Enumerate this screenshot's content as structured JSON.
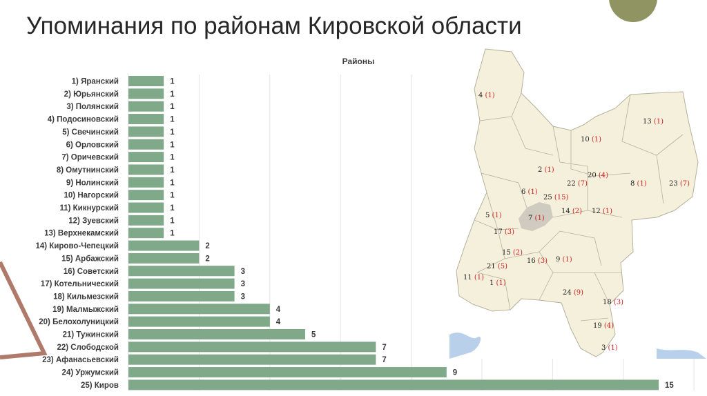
{
  "header": {
    "title": "Упоминания по районам Кировской области"
  },
  "chart_data": {
    "type": "bar",
    "orientation": "horizontal",
    "title": "Районы",
    "xlabel": "",
    "ylabel": "",
    "xlim": [
      0,
      16
    ],
    "grid": true,
    "color": "#7fa988",
    "categories": [
      "1) Яранский",
      "2) Юрьянский",
      "3) Полянский",
      "4) Подосиновский",
      "5) Свечинский",
      "6) Орловский",
      "7) Оричевский",
      "8) Омутнинский",
      "9) Нолинский",
      "10) Нагорский",
      "11) Кикнурский",
      "12) Зуевский",
      "13) Верхнекамский",
      "14) Кирово-Чепецкий",
      "15) Арбажский",
      "16) Советский",
      "17) Котельнический",
      "18) Кильмезский",
      "19) Малмыжский",
      "20) Белохолуницкий",
      "21) Тужинский",
      "22) Слободской",
      "23) Афанасьевский",
      "24) Уржумский",
      "25) Киров"
    ],
    "values": [
      1,
      1,
      1,
      1,
      1,
      1,
      1,
      1,
      1,
      1,
      1,
      1,
      1,
      2,
      2,
      3,
      3,
      3,
      4,
      4,
      5,
      7,
      7,
      9,
      15
    ]
  },
  "map": {
    "land_color": "#f4f0dc",
    "border_color": "#b5b09b",
    "city_color": "#cfcbc0",
    "labels": [
      {
        "num": "4",
        "count": "(1)"
      },
      {
        "num": "13",
        "count": "(1)"
      },
      {
        "num": "10",
        "count": "(1)"
      },
      {
        "num": "2",
        "count": "(1)"
      },
      {
        "num": "20",
        "count": "(4)"
      },
      {
        "num": "22",
        "count": "(7)"
      },
      {
        "num": "8",
        "count": "(1)"
      },
      {
        "num": "23",
        "count": "(7)"
      },
      {
        "num": "6",
        "count": "(1)"
      },
      {
        "num": "25",
        "count": "(15)"
      },
      {
        "num": "14",
        "count": "(2)"
      },
      {
        "num": "12",
        "count": "(1)"
      },
      {
        "num": "5",
        "count": "(1)"
      },
      {
        "num": "7",
        "count": "(1)"
      },
      {
        "num": "17",
        "count": "(3)"
      },
      {
        "num": "15",
        "count": "(2)"
      },
      {
        "num": "21",
        "count": "(5)"
      },
      {
        "num": "16",
        "count": "(3)"
      },
      {
        "num": "9",
        "count": "(1)"
      },
      {
        "num": "11",
        "count": "(1)"
      },
      {
        "num": "1",
        "count": "(1)"
      },
      {
        "num": "24",
        "count": "(9)"
      },
      {
        "num": "18",
        "count": "(3)"
      },
      {
        "num": "19",
        "count": "(4)"
      },
      {
        "num": "3",
        "count": "(1)"
      }
    ]
  }
}
